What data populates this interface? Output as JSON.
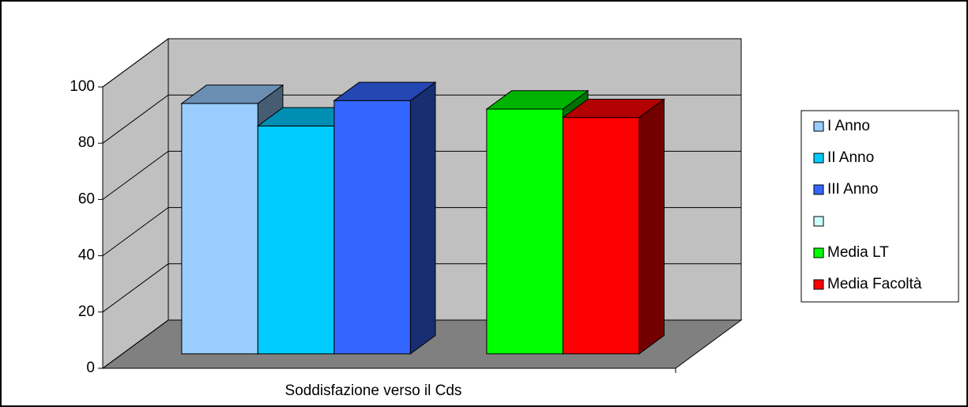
{
  "chart_data": {
    "type": "bar3d",
    "categories": [
      "Soddisfazione verso il Cds"
    ],
    "series": [
      {
        "name": "I Anno",
        "color": "#99ccff",
        "values": [
          89
        ]
      },
      {
        "name": "II Anno",
        "color": "#00ccff",
        "values": [
          81
        ]
      },
      {
        "name": "III Anno",
        "color": "#3366ff",
        "values": [
          90
        ]
      },
      {
        "name": null,
        "color": "#ccffff",
        "values": [
          null
        ]
      },
      {
        "name": "Media LT",
        "color": "#00ff00",
        "values": [
          87
        ]
      },
      {
        "name": "Media Facoltà",
        "color": "#ff0000",
        "values": [
          84
        ]
      }
    ],
    "ylim": [
      0,
      100
    ],
    "yticks": [
      0,
      20,
      40,
      60,
      80,
      100
    ],
    "grid": true,
    "legend": "right"
  }
}
